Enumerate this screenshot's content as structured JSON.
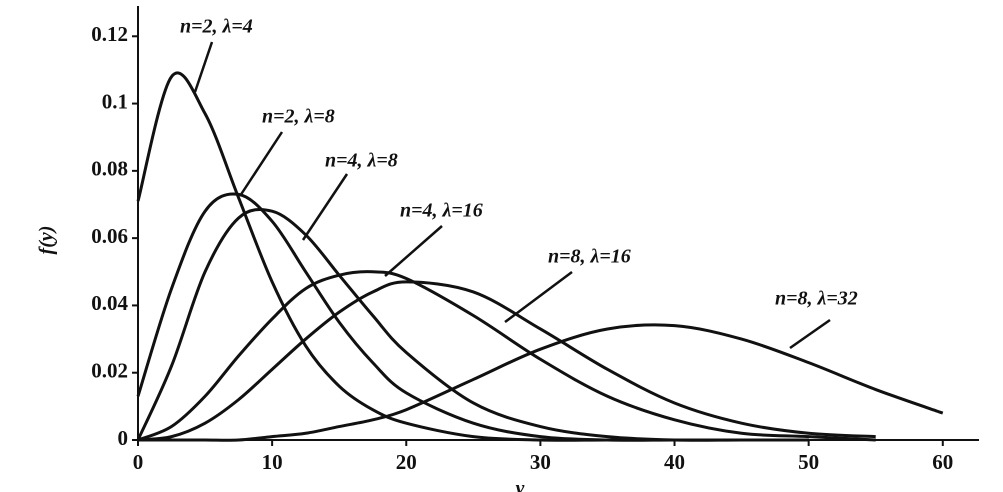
{
  "chart_data": {
    "type": "line",
    "x_label": "y",
    "y_label": "f(y)",
    "x": [
      0,
      2.5,
      5,
      7.5,
      10,
      12.5,
      15,
      17.5,
      20,
      25,
      30,
      35,
      40,
      45,
      50,
      55,
      60
    ],
    "series": [
      {
        "name": "n=2, λ=4",
        "color": "#111111",
        "values": [
          0.071,
          0.108,
          0.097,
          0.072,
          0.047,
          0.028,
          0.016,
          0.009,
          0.005,
          0.001,
          0,
          0,
          0,
          0,
          0,
          null,
          null
        ]
      },
      {
        "name": "n=2, λ=8",
        "color": "#111111",
        "values": [
          0.013,
          0.045,
          0.068,
          0.073,
          0.065,
          0.05,
          0.035,
          0.023,
          0.014,
          0.005,
          0.001,
          0,
          0,
          0,
          0,
          null,
          null
        ]
      },
      {
        "name": "n=4, λ=8",
        "color": "#111111",
        "values": [
          0,
          0.022,
          0.05,
          0.066,
          0.068,
          0.061,
          0.049,
          0.037,
          0.026,
          0.011,
          0.004,
          0.001,
          0,
          0,
          0,
          null,
          null
        ]
      },
      {
        "name": "n=4, λ=16",
        "color": "#111111",
        "values": [
          0,
          0.004,
          0.013,
          0.025,
          0.036,
          0.045,
          0.049,
          0.05,
          0.048,
          0.037,
          0.024,
          0.013,
          0.006,
          0.002,
          0.001,
          0,
          null
        ]
      },
      {
        "name": "n=8, λ=16",
        "color": "#111111",
        "values": [
          0,
          0.001,
          0.005,
          0.012,
          0.021,
          0.03,
          0.038,
          0.044,
          0.047,
          0.044,
          0.033,
          0.021,
          0.011,
          0.005,
          0.002,
          0.001,
          null
        ]
      },
      {
        "name": "n=8, λ=32",
        "color": "#111111",
        "values": [
          0,
          0,
          0,
          0,
          0.001,
          0.002,
          0.004,
          0.006,
          0.009,
          0.018,
          0.027,
          0.033,
          0.034,
          0.03,
          0.023,
          0.015,
          0.008
        ]
      }
    ],
    "xlim": [
      0,
      62.7
    ],
    "xticks": [
      0,
      10,
      20,
      30,
      40,
      50,
      60
    ],
    "ylim": [
      0,
      0.129
    ],
    "yticks": [
      0,
      0.02,
      0.04,
      0.06,
      0.08,
      0.1,
      0.12
    ],
    "grid": false
  }
}
